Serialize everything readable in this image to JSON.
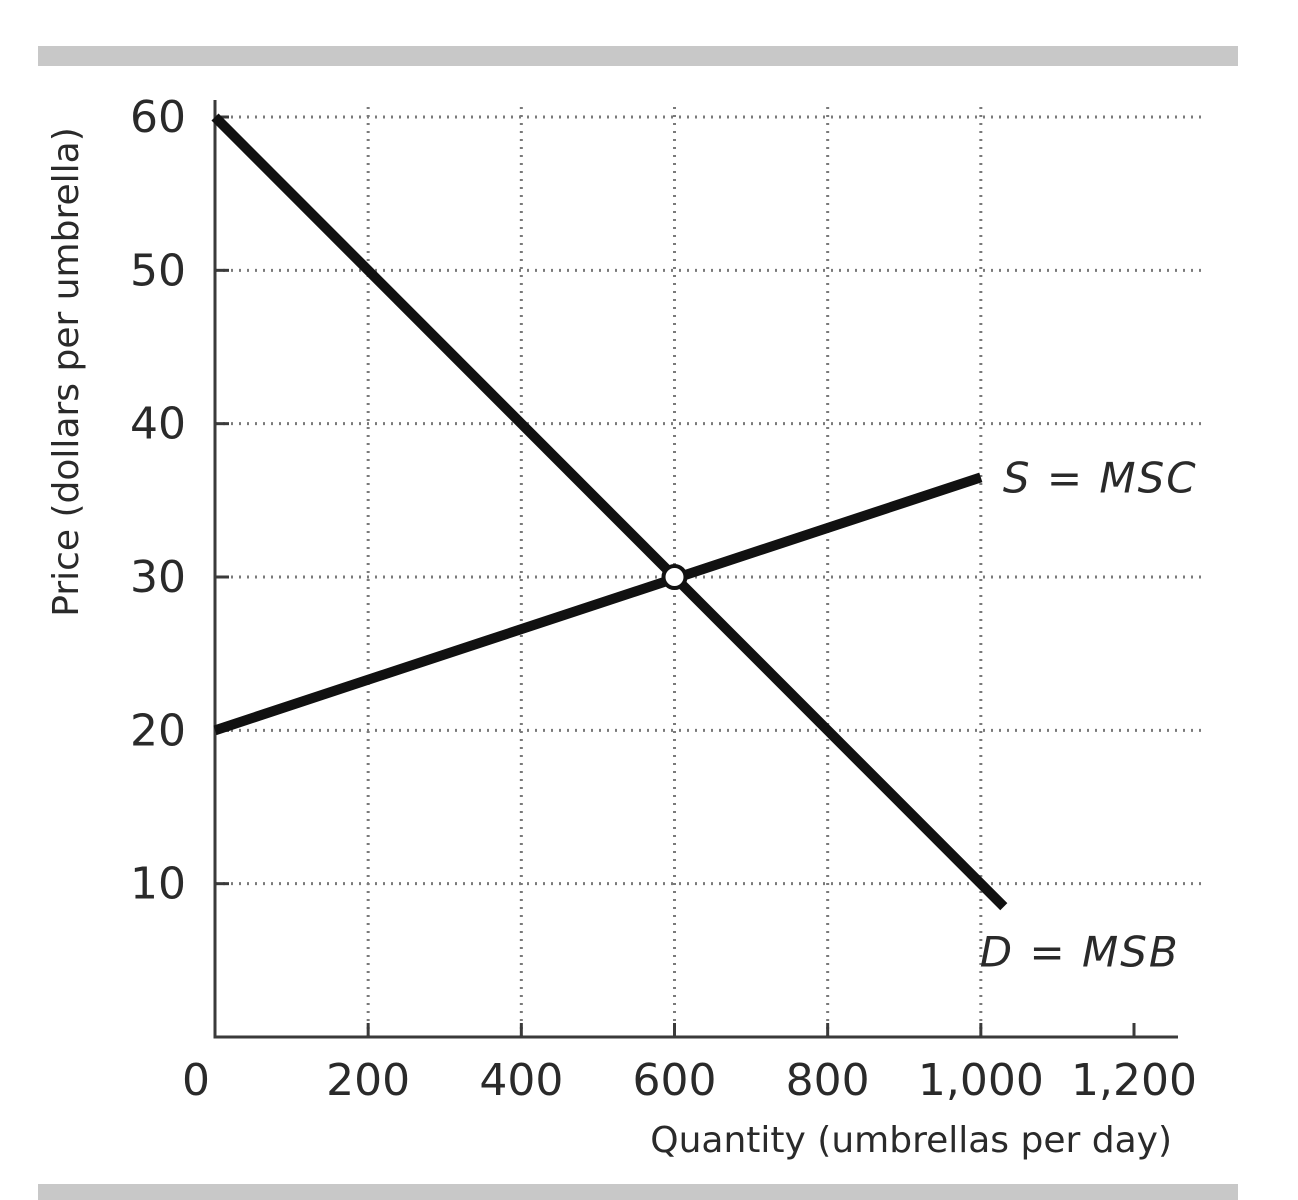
{
  "colors": {
    "curve": "#111111",
    "grid": "#7a7a7a",
    "axis": "#3a3a3a",
    "text": "#2a2a2a",
    "rule": "#c8c8c8"
  },
  "chart_data": {
    "type": "line",
    "title": "",
    "xlabel": "Quantity (umbrellas per day)",
    "ylabel": "Price (dollars per umbrella)",
    "xlim": [
      0,
      1200
    ],
    "ylim": [
      0,
      60
    ],
    "x_ticks": [
      200,
      400,
      600,
      800,
      1000,
      1200
    ],
    "x_tick_labels": [
      "200",
      "400",
      "600",
      "800",
      "1,000",
      "1,200"
    ],
    "y_ticks": [
      10,
      20,
      30,
      40,
      50,
      60
    ],
    "y_tick_labels": [
      "10",
      "20",
      "30",
      "40",
      "50",
      "60"
    ],
    "origin_label": "0",
    "grid": true,
    "series": [
      {
        "name": "S = MSC",
        "points": [
          [
            0,
            20
          ],
          [
            1000,
            36.5
          ]
        ]
      },
      {
        "name": "D = MSB",
        "points": [
          [
            0,
            60
          ],
          [
            1030,
            8.5
          ]
        ]
      }
    ],
    "equilibrium": {
      "x": 600,
      "y": 30
    }
  }
}
